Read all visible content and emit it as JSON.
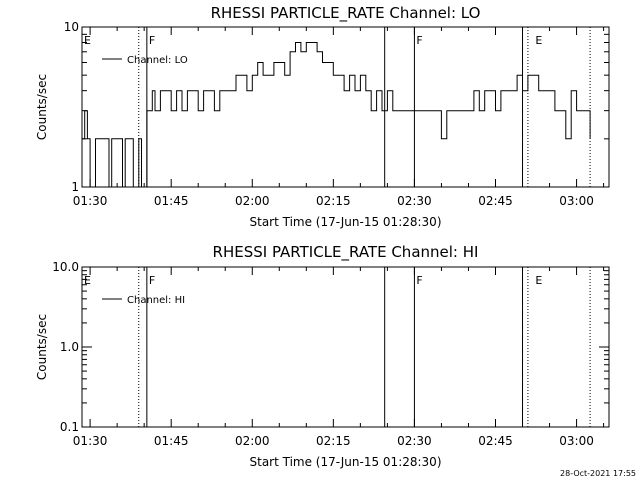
{
  "footer": {
    "timestamp": "28-Oct-2021 17:55"
  },
  "chart_data": [
    {
      "type": "line",
      "title": "RHESSI PARTICLE_RATE Channel: LO",
      "xlabel": "Start Time (17-Jun-15 01:28:30)",
      "ylabel": "Counts/sec",
      "y_scale": "log",
      "ylim": [
        1,
        10
      ],
      "y_ticks": [
        {
          "v": 1,
          "label": "1"
        },
        {
          "v": 10,
          "label": "10"
        }
      ],
      "xlim": [
        "01:28:30",
        "03:06:00"
      ],
      "x_ticks": [
        "01:30",
        "01:45",
        "02:00",
        "02:15",
        "02:30",
        "02:45",
        "03:00"
      ],
      "grid": false,
      "legend": {
        "position": "top-left",
        "entries": [
          "Channel: LO"
        ]
      },
      "flags": [
        {
          "label": "E",
          "time": "01:28:30"
        },
        {
          "label": "F",
          "time": "01:40:30"
        },
        {
          "label": "F",
          "time": "02:30:00"
        },
        {
          "label": "E",
          "time": "02:52:00"
        }
      ],
      "markers": [
        {
          "time": "01:39:00",
          "style": "dotted"
        },
        {
          "time": "01:40:30",
          "style": "solid"
        },
        {
          "time": "02:24:30",
          "style": "solid"
        },
        {
          "time": "02:30:00",
          "style": "solid"
        },
        {
          "time": "02:50:00",
          "style": "solid"
        },
        {
          "time": "02:51:00",
          "style": "dotted"
        },
        {
          "time": "03:02:30",
          "style": "dotted"
        }
      ],
      "series": [
        {
          "name": "Channel: LO",
          "x": [
            "01:28:30",
            "01:29:00",
            "01:29:30",
            "01:30:00",
            "01:31:00",
            "01:32:00",
            "01:33:00",
            "01:33:30",
            "01:34:00",
            "01:35:00",
            "01:36:00",
            "01:36:30",
            "01:37:00",
            "01:38:00",
            "01:39:00",
            "01:39:30",
            "01:40:00",
            "01:40:30",
            "01:41:00",
            "01:41:30",
            "01:42:00",
            "01:43:00",
            "01:44:00",
            "01:45:00",
            "01:46:00",
            "01:47:00",
            "01:48:00",
            "01:49:00",
            "01:50:00",
            "01:51:00",
            "01:52:00",
            "01:53:00",
            "01:54:00",
            "01:55:00",
            "01:56:00",
            "01:57:00",
            "01:58:00",
            "01:59:00",
            "02:00:00",
            "02:01:00",
            "02:02:00",
            "02:03:00",
            "02:04:00",
            "02:05:00",
            "02:06:00",
            "02:07:00",
            "02:08:00",
            "02:09:00",
            "02:10:00",
            "02:11:00",
            "02:12:00",
            "02:13:00",
            "02:14:00",
            "02:15:00",
            "02:16:00",
            "02:17:00",
            "02:18:00",
            "02:19:00",
            "02:20:00",
            "02:21:00",
            "02:22:00",
            "02:23:00",
            "02:24:00",
            "02:25:00",
            "02:26:00",
            "02:27:00",
            "02:28:00",
            "02:29:00",
            "02:30:00",
            "02:31:00",
            "02:32:00",
            "02:33:00",
            "02:34:00",
            "02:35:00",
            "02:36:00",
            "02:37:00",
            "02:38:00",
            "02:39:00",
            "02:40:00",
            "02:41:00",
            "02:42:00",
            "02:43:00",
            "02:44:00",
            "02:45:00",
            "02:46:00",
            "02:47:00",
            "02:48:00",
            "02:49:00",
            "02:50:00",
            "02:51:00",
            "02:52:00",
            "02:53:00",
            "02:54:00",
            "02:55:00",
            "02:56:00",
            "02:57:00",
            "02:58:00",
            "02:59:00",
            "03:00:00",
            "03:01:00",
            "03:02:00",
            "03:02:30"
          ],
          "y": [
            2,
            3,
            2,
            1,
            2,
            2,
            2,
            1,
            2,
            2,
            1,
            2,
            2,
            1,
            2,
            1,
            1,
            3,
            3,
            4,
            3,
            4,
            4,
            3,
            4,
            3,
            4,
            4,
            3,
            4,
            4,
            3,
            4,
            4,
            4,
            5,
            5,
            4,
            5,
            6,
            5,
            5,
            6,
            6,
            5,
            7,
            8,
            7,
            8,
            8,
            7,
            6,
            6,
            5,
            5,
            4,
            5,
            4,
            5,
            4,
            3,
            4,
            3,
            4,
            3,
            3,
            3,
            3,
            3,
            3,
            3,
            3,
            3,
            2,
            3,
            3,
            3,
            3,
            3,
            4,
            3,
            4,
            4,
            3,
            4,
            4,
            4,
            5,
            4,
            5,
            5,
            4,
            4,
            4,
            3,
            3,
            2,
            4,
            3,
            3,
            3,
            2
          ]
        }
      ]
    },
    {
      "type": "line",
      "title": "RHESSI PARTICLE_RATE Channel: HI",
      "xlabel": "Start Time (17-Jun-15 01:28:30)",
      "ylabel": "Counts/sec",
      "y_scale": "log",
      "ylim": [
        0.1,
        10
      ],
      "y_ticks": [
        {
          "v": 0.1,
          "label": "0.1"
        },
        {
          "v": 1,
          "label": "1.0"
        },
        {
          "v": 10,
          "label": "10.0"
        }
      ],
      "xlim": [
        "01:28:30",
        "03:06:00"
      ],
      "x_ticks": [
        "01:30",
        "01:45",
        "02:00",
        "02:15",
        "02:30",
        "02:45",
        "03:00"
      ],
      "grid": false,
      "legend": {
        "position": "top-left",
        "entries": [
          "Channel: HI"
        ]
      },
      "flags": [
        {
          "label": "E",
          "time": "01:28:30"
        },
        {
          "label": "F",
          "time": "01:40:30"
        },
        {
          "label": "F",
          "time": "02:30:00"
        },
        {
          "label": "E",
          "time": "02:52:00"
        }
      ],
      "markers": [
        {
          "time": "01:39:00",
          "style": "dotted"
        },
        {
          "time": "01:40:30",
          "style": "solid"
        },
        {
          "time": "02:24:30",
          "style": "solid"
        },
        {
          "time": "02:30:00",
          "style": "solid"
        },
        {
          "time": "02:50:00",
          "style": "solid"
        },
        {
          "time": "02:51:00",
          "style": "dotted"
        },
        {
          "time": "03:02:30",
          "style": "dotted"
        }
      ],
      "series": [
        {
          "name": "Channel: HI",
          "x": [],
          "y": []
        }
      ]
    }
  ]
}
